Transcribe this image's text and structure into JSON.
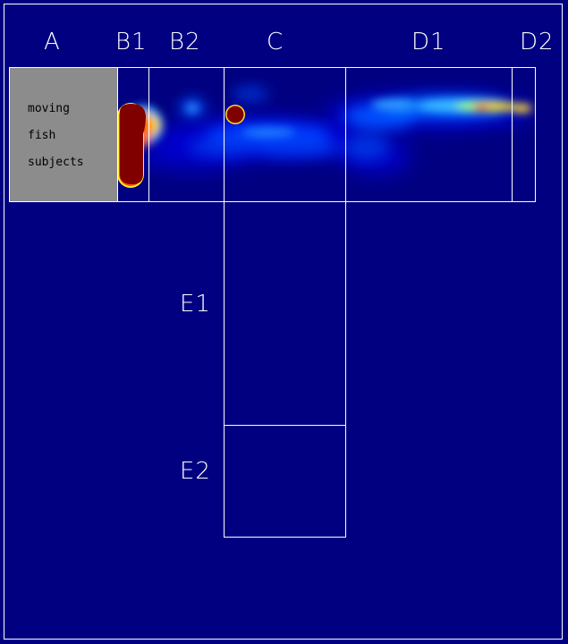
{
  "zones": {
    "A": "A",
    "B1": "B1",
    "B2": "B2",
    "C": "C",
    "D1": "D1",
    "D2": "D2",
    "E1": "E1",
    "E2": "E2"
  },
  "stimulus_box": {
    "line1": "moving",
    "line2": "fish",
    "line3": "subjects",
    "fill_color": "#8c8c8c"
  },
  "colors": {
    "background": "#000080",
    "lines": "#ffffff",
    "heat_high": "#800000",
    "heat_mid": "#ff4000",
    "heat_low": "#0040ff"
  }
}
